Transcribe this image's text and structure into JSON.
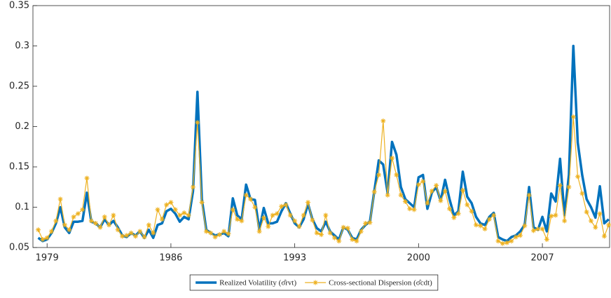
{
  "chart_data": {
    "type": "line",
    "x": [
      1978.5,
      1978.75,
      1979,
      1979.25,
      1979.5,
      1979.75,
      1980,
      1980.25,
      1980.5,
      1980.75,
      1981,
      1981.25,
      1981.5,
      1981.75,
      1982,
      1982.25,
      1982.5,
      1982.75,
      1983,
      1983.25,
      1983.5,
      1983.75,
      1984,
      1984.25,
      1984.5,
      1984.75,
      1985,
      1985.25,
      1985.5,
      1985.75,
      1986,
      1986.25,
      1986.5,
      1986.75,
      1987,
      1987.25,
      1987.5,
      1987.75,
      1988,
      1988.25,
      1988.5,
      1988.75,
      1989,
      1989.25,
      1989.5,
      1989.75,
      1990,
      1990.25,
      1990.5,
      1990.75,
      1991,
      1991.25,
      1991.5,
      1991.75,
      1992,
      1992.25,
      1992.5,
      1992.75,
      1993,
      1993.25,
      1993.5,
      1993.75,
      1994,
      1994.25,
      1994.5,
      1994.75,
      1995,
      1995.25,
      1995.5,
      1995.75,
      1996,
      1996.25,
      1996.5,
      1996.75,
      1997,
      1997.25,
      1997.5,
      1997.75,
      1998,
      1998.25,
      1998.5,
      1998.75,
      1999,
      1999.25,
      1999.5,
      1999.75,
      2000,
      2000.25,
      2000.5,
      2000.75,
      2001,
      2001.25,
      2001.5,
      2001.75,
      2002,
      2002.25,
      2002.5,
      2002.75,
      2003,
      2003.25,
      2003.5,
      2003.75,
      2004,
      2004.25,
      2004.5,
      2004.75,
      2005,
      2005.25,
      2005.5,
      2005.75,
      2006,
      2006.25,
      2006.5,
      2006.75,
      2007,
      2007.25,
      2007.5,
      2007.75,
      2008,
      2008.25,
      2008.5,
      2008.75,
      2009,
      2009.25,
      2009.5,
      2009.75,
      2010,
      2010.25,
      2010.5,
      2010.75
    ],
    "series": [
      {
        "name": "Realized Volatility (σ̂rvt)",
        "color": "#0072bd",
        "marker": "none",
        "values": [
          0.062,
          0.058,
          0.06,
          0.068,
          0.08,
          0.1,
          0.075,
          0.068,
          0.082,
          0.082,
          0.083,
          0.118,
          0.082,
          0.08,
          0.075,
          0.085,
          0.078,
          0.083,
          0.075,
          0.065,
          0.063,
          0.068,
          0.065,
          0.07,
          0.062,
          0.072,
          0.062,
          0.078,
          0.08,
          0.095,
          0.098,
          0.092,
          0.082,
          0.088,
          0.085,
          0.12,
          0.243,
          0.11,
          0.072,
          0.068,
          0.065,
          0.066,
          0.068,
          0.064,
          0.111,
          0.09,
          0.085,
          0.128,
          0.11,
          0.109,
          0.072,
          0.099,
          0.08,
          0.08,
          0.082,
          0.095,
          0.105,
          0.092,
          0.08,
          0.075,
          0.085,
          0.104,
          0.085,
          0.074,
          0.07,
          0.082,
          0.07,
          0.065,
          0.06,
          0.075,
          0.072,
          0.062,
          0.06,
          0.072,
          0.078,
          0.082,
          0.12,
          0.158,
          0.153,
          0.118,
          0.181,
          0.165,
          0.125,
          0.11,
          0.105,
          0.1,
          0.137,
          0.14,
          0.098,
          0.118,
          0.125,
          0.108,
          0.134,
          0.11,
          0.09,
          0.095,
          0.144,
          0.113,
          0.105,
          0.088,
          0.08,
          0.078,
          0.088,
          0.093,
          0.063,
          0.06,
          0.058,
          0.063,
          0.065,
          0.07,
          0.078,
          0.125,
          0.075,
          0.072,
          0.088,
          0.07,
          0.117,
          0.107,
          0.16,
          0.09,
          0.14,
          0.3,
          0.18,
          0.14,
          0.11,
          0.1,
          0.087,
          0.126,
          0.08,
          0.085
        ]
      },
      {
        "name": "Cross-sectional Dispersion (σ̂cdt)",
        "color": "#edb120",
        "marker": "star",
        "values": [
          0.072,
          0.06,
          0.062,
          0.07,
          0.083,
          0.11,
          0.078,
          0.072,
          0.088,
          0.092,
          0.097,
          0.136,
          0.083,
          0.08,
          0.075,
          0.088,
          0.078,
          0.09,
          0.072,
          0.064,
          0.065,
          0.068,
          0.064,
          0.07,
          0.063,
          0.078,
          0.068,
          0.097,
          0.085,
          0.103,
          0.106,
          0.097,
          0.09,
          0.093,
          0.09,
          0.125,
          0.205,
          0.106,
          0.07,
          0.068,
          0.063,
          0.066,
          0.07,
          0.067,
          0.097,
          0.085,
          0.083,
          0.115,
          0.11,
          0.1,
          0.07,
          0.087,
          0.076,
          0.09,
          0.092,
          0.101,
          0.103,
          0.09,
          0.083,
          0.076,
          0.09,
          0.106,
          0.084,
          0.068,
          0.066,
          0.09,
          0.068,
          0.062,
          0.058,
          0.075,
          0.074,
          0.06,
          0.058,
          0.07,
          0.08,
          0.081,
          0.119,
          0.14,
          0.207,
          0.115,
          0.161,
          0.14,
          0.115,
          0.107,
          0.098,
          0.097,
          0.128,
          0.132,
          0.105,
          0.12,
          0.127,
          0.108,
          0.12,
          0.098,
          0.087,
          0.092,
          0.121,
          0.103,
          0.095,
          0.078,
          0.077,
          0.073,
          0.085,
          0.09,
          0.058,
          0.055,
          0.056,
          0.058,
          0.063,
          0.065,
          0.077,
          0.115,
          0.071,
          0.073,
          0.073,
          0.06,
          0.089,
          0.09,
          0.127,
          0.083,
          0.125,
          0.212,
          0.138,
          0.117,
          0.094,
          0.083,
          0.075,
          0.092,
          0.064,
          0.078
        ]
      }
    ],
    "xlim": [
      1978.2,
      2010.8
    ],
    "xticks": [
      1979,
      1986,
      1993,
      2000,
      2007
    ],
    "ylim": [
      0.05,
      0.35
    ],
    "yticks": [
      0.05,
      0.1,
      0.15,
      0.2,
      0.25,
      0.3,
      0.35
    ],
    "legend": "bottom"
  }
}
